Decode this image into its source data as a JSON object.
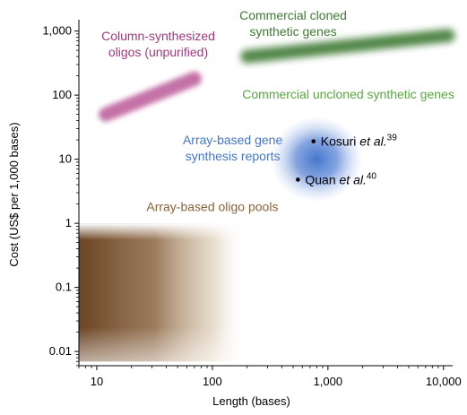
{
  "chart_data": {
    "type": "scatter",
    "xlabel": "Length (bases)",
    "ylabel": "Cost (US$ per 1,000 bases)",
    "x_scale": "log",
    "y_scale": "log",
    "xlim": [
      7,
      12000
    ],
    "ylim": [
      0.006,
      1500
    ],
    "x_ticks": [
      {
        "value": 10,
        "label": "10"
      },
      {
        "value": 100,
        "label": "100"
      },
      {
        "value": 1000,
        "label": "1,000"
      },
      {
        "value": 10000,
        "label": "10,000"
      }
    ],
    "y_ticks": [
      {
        "value": 0.01,
        "label": "0.01"
      },
      {
        "value": 0.1,
        "label": "0.1"
      },
      {
        "value": 1,
        "label": "1"
      },
      {
        "value": 10,
        "label": "10"
      },
      {
        "value": 100,
        "label": "100"
      },
      {
        "value": 1000,
        "label": "1,000"
      }
    ],
    "grid": false,
    "regions": [
      {
        "name": "Commercial cloned synthetic genes",
        "color": "#3f7a35",
        "from": [
          200,
          400
        ],
        "to": [
          11000,
          850
        ]
      },
      {
        "name": "Commercial uncloned synthetic genes",
        "color": "#6fbf5a",
        "from": [
          200,
          180
        ],
        "to": [
          4000,
          180
        ]
      },
      {
        "name": "Column-synthesized oligos (unpurified)",
        "color": "#b0428a",
        "from": [
          12,
          50
        ],
        "to": [
          70,
          180
        ]
      },
      {
        "name": "Array-based gene synthesis reports",
        "color": "#3c6fc9",
        "center": [
          800,
          10
        ]
      },
      {
        "name": "Array-based oligo pools",
        "color": "#6b4525",
        "from": [
          7,
          0.007
        ],
        "to": [
          200,
          1
        ]
      }
    ],
    "points": [
      {
        "x": 750,
        "y": 19,
        "label": "Kosuri",
        "suffix": " et al.",
        "ref": "39"
      },
      {
        "x": 550,
        "y": 4.8,
        "label": "Quan",
        "suffix": " et al.",
        "ref": "40"
      }
    ],
    "annotations": [
      {
        "lines": [
          "Commercial cloned",
          "synthetic genes"
        ],
        "color": "#3f7a35",
        "x": 500,
        "y": 1500
      },
      {
        "lines": [
          "Column-synthesized",
          "oligos (unpurified)"
        ],
        "color": "#a03a7f",
        "x": 34,
        "y": 720
      },
      {
        "lines": [
          "Commercial uncloned synthetic genes"
        ],
        "color": "#5aa83f",
        "x": 1500,
        "y": 88
      },
      {
        "lines": [
          "Array-based gene",
          "synthesis reports"
        ],
        "color": "#4576c8",
        "x": 150,
        "y": 17
      },
      {
        "lines": [
          "Array-based oligo pools"
        ],
        "color": "#8a6437",
        "x": 100,
        "y": 1.55
      }
    ]
  }
}
